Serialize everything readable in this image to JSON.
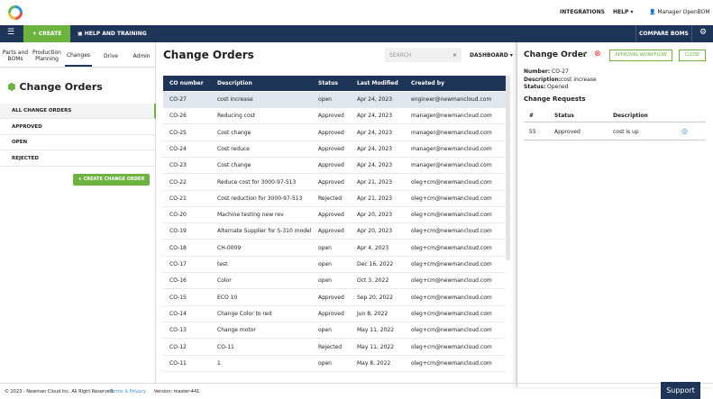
{
  "topbar": {
    "integrations": "INTEGRATIONS",
    "help": "HELP",
    "user": "Manager OpenBOM"
  },
  "navbar": {
    "create": "CREATE",
    "help_training": "HELP AND TRAINING",
    "compare": "COMPARE BOMS"
  },
  "sidebar": {
    "tabs": [
      "Parts and BOMs",
      "Production Planning",
      "Changes",
      "Drive",
      "Admin"
    ],
    "title": "Change Orders",
    "filters": [
      "ALL CHANGE ORDERS",
      "APPROVED",
      "OPEN",
      "REJECTED"
    ],
    "button": "CREATE CHANGE ORDER"
  },
  "main": {
    "title": "Change Orders",
    "search": "SEARCH",
    "dashboard": "DASHBOARD",
    "table": {
      "headers": [
        "CO number",
        "Description",
        "Status",
        "Last Modified",
        "Created by"
      ],
      "rows": [
        [
          "CO-27",
          "cost increase",
          "open",
          "Apr 24, 2023",
          "engineer@newmancloud.com"
        ],
        [
          "CO-26",
          "Reducing cost",
          "Approved",
          "Apr 24, 2023",
          "manager@newmancloud.com"
        ],
        [
          "CO-25",
          "Cost change",
          "Approved",
          "Apr 24, 2023",
          "manager@newmancloud.com"
        ],
        [
          "CO-24",
          "Cost reduce",
          "Approved",
          "Apr 24, 2023",
          "manager@newmancloud.com"
        ],
        [
          "CO-23",
          "Cost change",
          "Approved",
          "Apr 24, 2023",
          "manager@newmancloud.com"
        ],
        [
          "CO-22",
          "Reduce cost for 3000-97-513",
          "Approved",
          "Apr 21, 2023",
          "oleg+cm@newmancloud.com"
        ],
        [
          "CO-21",
          "Cost reduction for 3000-97-513",
          "Rejected",
          "Apr 21, 2023",
          "oleg+cm@newmancloud.com"
        ],
        [
          "CO-20",
          "Machine testing new rev",
          "Approved",
          "Apr 20, 2023",
          "oleg+cm@newmancloud.com"
        ],
        [
          "CO-19",
          "Alternate Supplier for S-310 model",
          "Approved",
          "Apr 20, 2023",
          "oleg+cm@newmancloud.com"
        ],
        [
          "CO-18",
          "CH-0009",
          "open",
          "Apr 4, 2023",
          "oleg+cm@newmancloud.com"
        ],
        [
          "CO-17",
          "test",
          "open",
          "Dec 16, 2022",
          "oleg+cm@newmancloud.com"
        ],
        [
          "CO-16",
          "Color",
          "open",
          "Oct 3, 2022",
          "oleg+cm@newmancloud.com"
        ],
        [
          "CO-15",
          "ECO 10",
          "Approved",
          "Sep 20, 2022",
          "oleg+cm@newmancloud.com"
        ],
        [
          "CO-14",
          "Change Color to red",
          "Approved",
          "Jun 8, 2022",
          "oleg+cm@newmancloud.com"
        ],
        [
          "CO-13",
          "Change motor",
          "open",
          "May 11, 2022",
          "oleg+cm@newmancloud.com"
        ],
        [
          "CO-12",
          "CO-11",
          "Rejected",
          "May 11, 2022",
          "oleg+cm@newmancloud.com"
        ],
        [
          "CO-11",
          "1",
          "open",
          "May 8, 2022",
          "oleg+cm@newmancloud.com"
        ]
      ]
    }
  },
  "detail": {
    "title": "Change Order",
    "approval": "APPROVAL WORKFLOW",
    "close": "CLOSE",
    "fields": [
      [
        "Number:",
        "CO-27"
      ],
      [
        "Description:",
        "cost increase"
      ],
      [
        "Status:",
        "Opened"
      ]
    ],
    "requests_title": "Change Requests",
    "requests_headers": [
      "#",
      "Status",
      "Description"
    ],
    "requests_rows": [
      [
        "55",
        "Approved",
        "cost is up"
      ]
    ]
  },
  "footer": {
    "copyright": "© 2023 - Newman Cloud Inc. All Right Reserved.",
    "terms": "Terms & Privacy",
    "version": "Version: master-441",
    "support": "Support"
  }
}
